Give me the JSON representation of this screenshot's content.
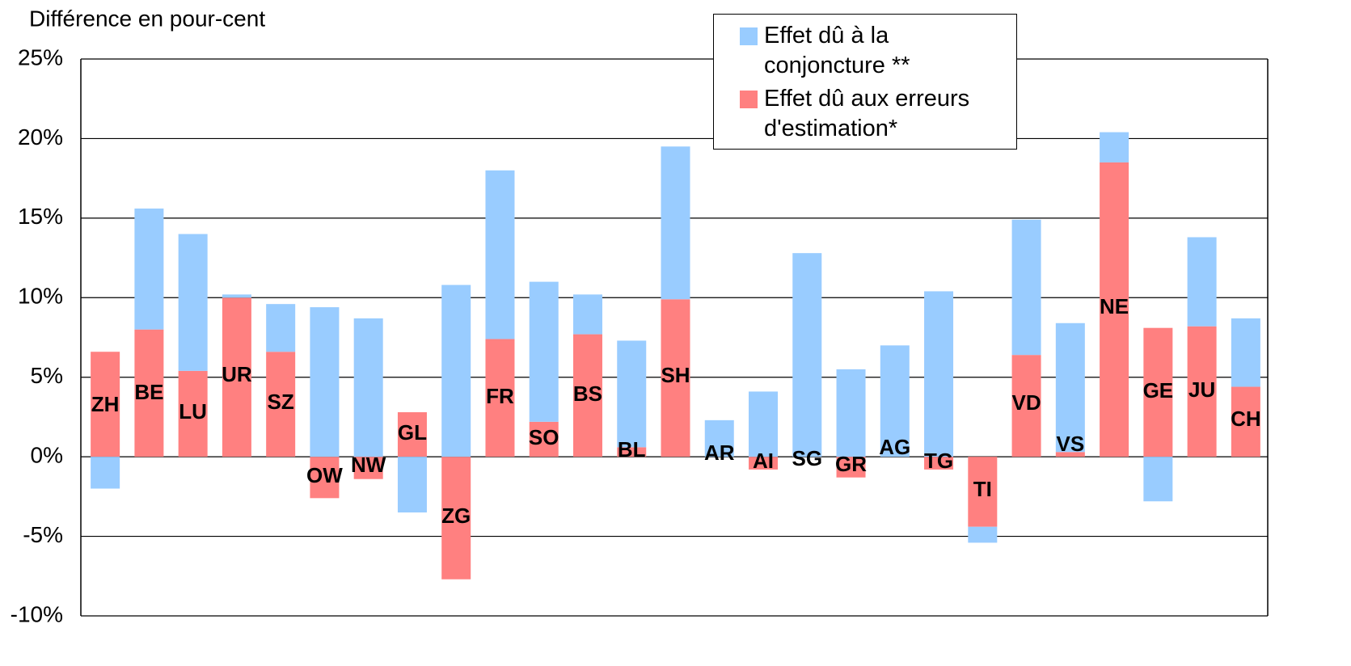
{
  "chart_data": {
    "type": "stacked-bar",
    "y_label": "Différence en pour-cent",
    "categories": [
      "ZH",
      "BE",
      "LU",
      "UR",
      "SZ",
      "OW",
      "NW",
      "GL",
      "ZG",
      "FR",
      "SO",
      "BS",
      "BL",
      "SH",
      "AR",
      "AI",
      "SG",
      "GR",
      "AG",
      "TG",
      "TI",
      "VD",
      "VS",
      "NE",
      "GE",
      "JU",
      "CH"
    ],
    "series": [
      {
        "name": "Effet dû aux erreurs d'estimation*",
        "color": "#ff8080",
        "values": [
          6.6,
          8.0,
          5.4,
          10.0,
          6.6,
          -2.6,
          -1.4,
          2.8,
          -7.7,
          7.4,
          2.2,
          7.7,
          0.6,
          9.9,
          0,
          -0.8,
          0,
          -1.3,
          0,
          -0.8,
          -4.4,
          6.4,
          0.3,
          18.5,
          8.1,
          8.2,
          4.4
        ]
      },
      {
        "name": "Effet dû à la conjoncture **",
        "color": "#99ccff",
        "values": [
          -2.0,
          7.6,
          8.6,
          0.2,
          3.0,
          9.4,
          8.7,
          -3.5,
          10.8,
          10.6,
          8.8,
          2.5,
          6.7,
          9.6,
          2.3,
          4.1,
          12.8,
          5.5,
          7.0,
          10.4,
          -1.0,
          8.5,
          8.1,
          1.9,
          -2.8,
          5.6,
          4.3
        ]
      }
    ],
    "ylim": [
      -10,
      25
    ],
    "yticks": [
      {
        "value": -10,
        "label": "-10%"
      },
      {
        "value": -5,
        "label": "-5%"
      },
      {
        "value": 0,
        "label": "0%"
      },
      {
        "value": 5,
        "label": "5%"
      },
      {
        "value": 10,
        "label": "10%"
      },
      {
        "value": 15,
        "label": "15%"
      },
      {
        "value": 20,
        "label": "20%"
      },
      {
        "value": 25,
        "label": "25%"
      }
    ],
    "grid": true,
    "legend": "top-right"
  }
}
